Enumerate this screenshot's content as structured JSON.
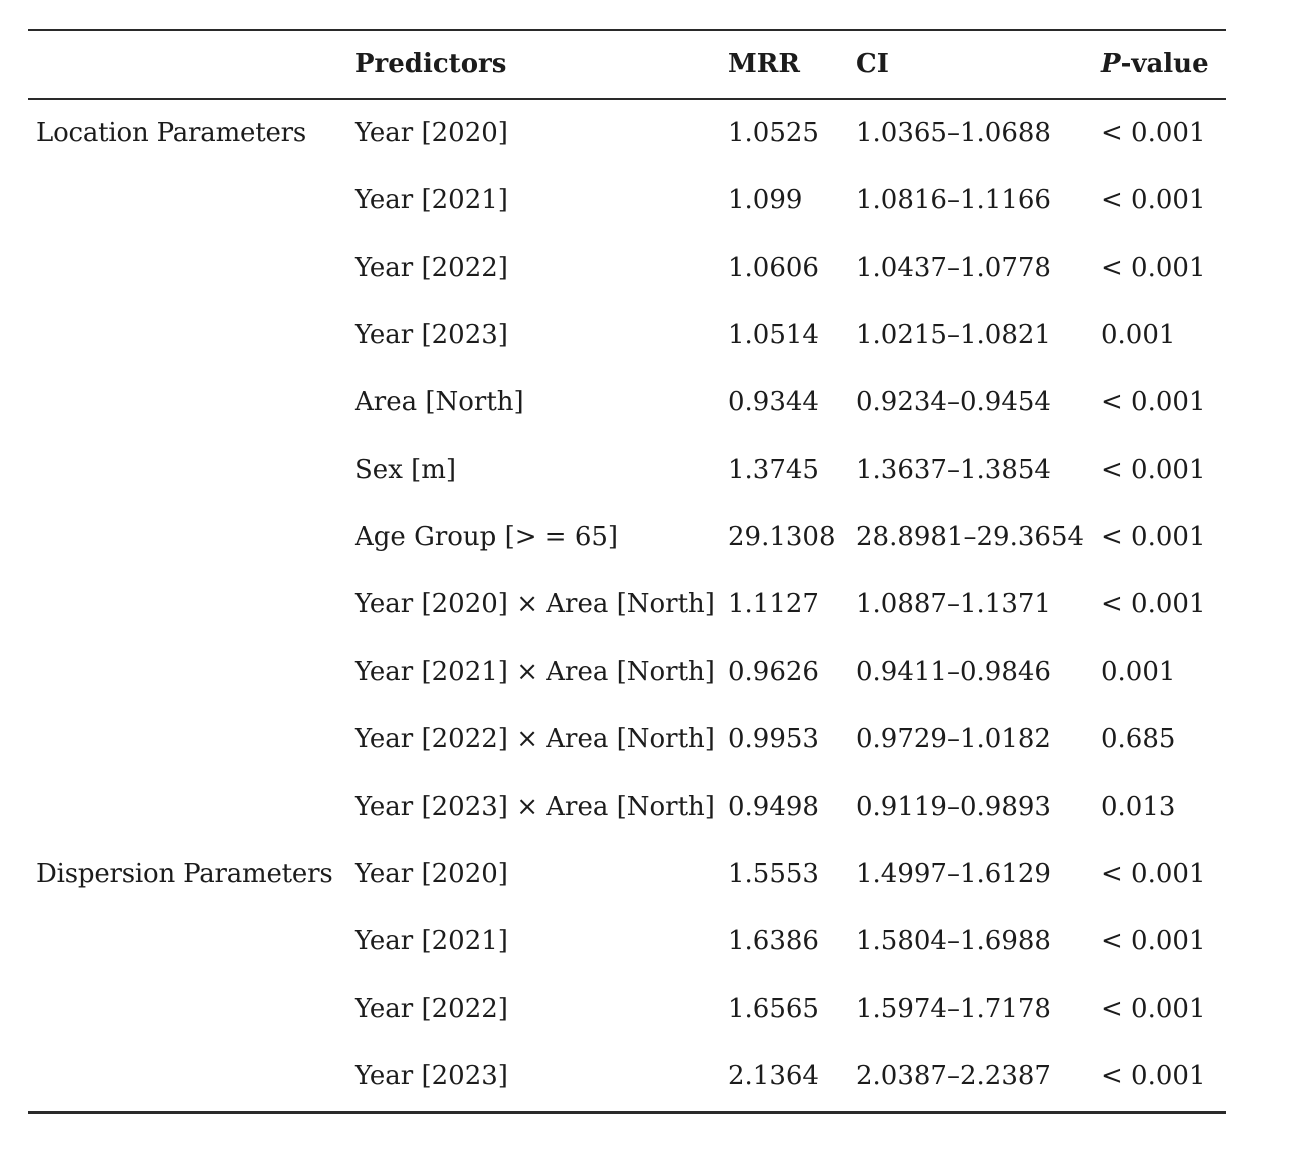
{
  "table": {
    "header": {
      "group": "",
      "predictors": "Predictors",
      "mrr": "MRR",
      "ci": "CI",
      "p_italic": "P",
      "p_rest": "-value"
    },
    "rows": [
      {
        "group": "Location Parameters",
        "predictor": "Year [2020]",
        "mrr": "1.0525",
        "ci": "1.0365–1.0688",
        "p": "< 0.001"
      },
      {
        "group": "",
        "predictor": "Year [2021]",
        "mrr": "1.099",
        "ci": "1.0816–1.1166",
        "p": "< 0.001"
      },
      {
        "group": "",
        "predictor": "Year [2022]",
        "mrr": "1.0606",
        "ci": "1.0437–1.0778",
        "p": "< 0.001"
      },
      {
        "group": "",
        "predictor": "Year [2023]",
        "mrr": "1.0514",
        "ci": "1.0215–1.0821",
        "p": "0.001"
      },
      {
        "group": "",
        "predictor": "Area [North]",
        "mrr": "0.9344",
        "ci": "0.9234–0.9454",
        "p": "< 0.001"
      },
      {
        "group": "",
        "predictor": "Sex [m]",
        "mrr": "1.3745",
        "ci": "1.3637–1.3854",
        "p": "< 0.001"
      },
      {
        "group": "",
        "predictor": "Age Group [> = 65]",
        "mrr": "29.1308",
        "ci": "28.8981–29.3654",
        "p": "< 0.001"
      },
      {
        "group": "",
        "predictor": "Year [2020] × Area [North]",
        "mrr": "1.1127",
        "ci": "1.0887–1.1371",
        "p": "< 0.001"
      },
      {
        "group": "",
        "predictor": "Year [2021] × Area [North]",
        "mrr": "0.9626",
        "ci": "0.9411–0.9846",
        "p": "0.001"
      },
      {
        "group": "",
        "predictor": "Year [2022] × Area [North]",
        "mrr": "0.9953",
        "ci": "0.9729–1.0182",
        "p": "0.685"
      },
      {
        "group": "",
        "predictor": "Year [2023] × Area [North]",
        "mrr": "0.9498",
        "ci": "0.9119–0.9893",
        "p": "0.013"
      },
      {
        "group": "Dispersion Parameters",
        "predictor": "Year [2020]",
        "mrr": "1.5553",
        "ci": "1.4997–1.6129",
        "p": "< 0.001"
      },
      {
        "group": "",
        "predictor": "Year [2021]",
        "mrr": "1.6386",
        "ci": "1.5804–1.6988",
        "p": "< 0.001"
      },
      {
        "group": "",
        "predictor": "Year [2022]",
        "mrr": "1.6565",
        "ci": "1.5974–1.7178",
        "p": "< 0.001"
      },
      {
        "group": "",
        "predictor": "Year [2023]",
        "mrr": "2.1364",
        "ci": "2.0387–2.2387",
        "p": "< 0.001"
      }
    ],
    "colors": {
      "text": "#1c1c1c",
      "rule": "#2a2a2a",
      "background": "#ffffff"
    }
  }
}
